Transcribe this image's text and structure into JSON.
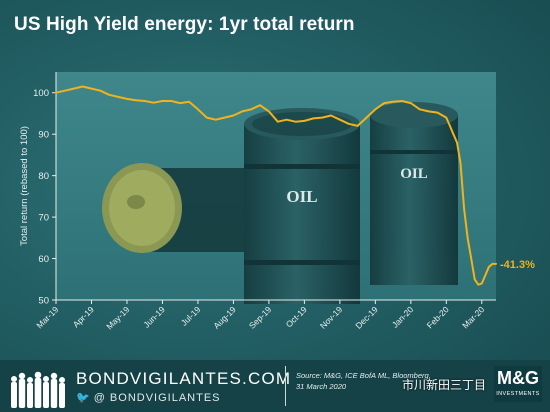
{
  "title": "US High Yield energy: 1yr total return",
  "colors": {
    "line": "#f2b21b",
    "axis": "#e8eeee",
    "plot_bg": "#3a7f84",
    "barrel": "#1d4a4d"
  },
  "chart_data": {
    "type": "line",
    "ylabel": "Total return (rebased to 100)",
    "ylim": [
      50,
      105
    ],
    "yticks": [
      50,
      60,
      70,
      80,
      90,
      100
    ],
    "xticks": [
      "Mar-19",
      "Apr-19",
      "May-19",
      "Jun-19",
      "Jul-19",
      "Aug-19",
      "Sep-19",
      "Oct-19",
      "Nov-19",
      "Dec-19",
      "Jan-20",
      "Feb-20",
      "Mar-20"
    ],
    "x_range": [
      0,
      12.4
    ],
    "annotation": "-41.3%",
    "barrel_label": "OIL",
    "series": [
      {
        "x": [
          0.0,
          0.25,
          0.5,
          0.75,
          1.0,
          1.25,
          1.5,
          1.75,
          2.0,
          2.25,
          2.5,
          2.75,
          3.0,
          3.25,
          3.5,
          3.75,
          4.0,
          4.25,
          4.5,
          4.75,
          5.0,
          5.25,
          5.5,
          5.75,
          6.0,
          6.25,
          6.5,
          6.75,
          7.0,
          7.25,
          7.5,
          7.75,
          8.0,
          8.25,
          8.5,
          8.75,
          9.0,
          9.25,
          9.5,
          9.75,
          10.0,
          10.25,
          10.5,
          10.75,
          11.0,
          11.1,
          11.2,
          11.3,
          11.4,
          11.5,
          11.6,
          11.7,
          11.8,
          11.9,
          12.0,
          12.1,
          12.2,
          12.3,
          12.4
        ],
        "y": [
          100,
          100.5,
          101,
          101.5,
          101,
          100.5,
          99.5,
          99,
          98.5,
          98.2,
          98,
          97.6,
          98,
          98,
          97.5,
          97.8,
          96,
          94,
          93.5,
          94,
          94.5,
          95.5,
          96,
          97,
          95.5,
          93,
          93.5,
          93,
          93.2,
          93.8,
          94,
          94.5,
          93.5,
          92.5,
          92,
          94,
          96,
          97.5,
          97.8,
          98,
          97.5,
          96,
          95.5,
          95.2,
          94,
          92,
          90,
          88,
          83,
          72,
          65,
          60,
          55,
          53.7,
          54,
          56,
          58,
          58.7,
          58.7
        ]
      }
    ]
  },
  "footer": {
    "brand": "BONDVIGILANTES.COM",
    "twitter": "@ BONDVIGILANTES",
    "source": "Source: M&G, ICE BofA ML, Bloomberg, 31 March 2020",
    "logo": "M&G",
    "logo_sub": "INVESTMENTS",
    "watermark": "市川新田三丁目"
  }
}
